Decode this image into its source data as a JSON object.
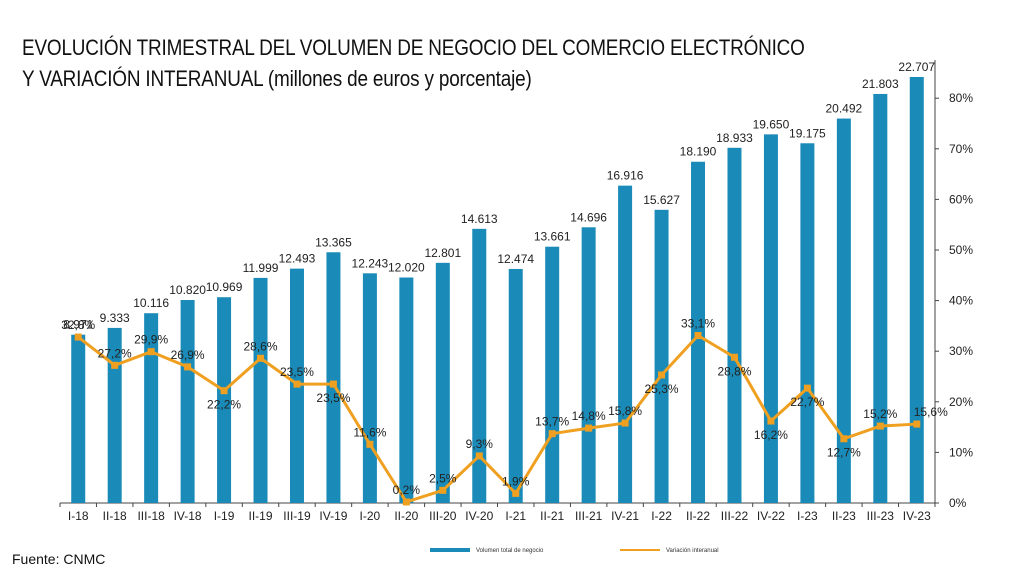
{
  "chart_data": {
    "type": "bar",
    "title_line1": "EVOLUCIÓN TRIMESTRAL DEL VOLUMEN DE NEGOCIO DEL COMERCIO ELECTRÓNICO",
    "title_line2": "Y VARIACIÓN INTERANUAL (millones de euros y porcentaje)",
    "source": "Fuente: CNMC",
    "categories": [
      "I-18",
      "II-18",
      "III-18",
      "IV-18",
      "I-19",
      "II-19",
      "III-19",
      "IV-19",
      "I-20",
      "II-20",
      "III-20",
      "IV-20",
      "I-21",
      "II-21",
      "III-21",
      "IV-21",
      "I-22",
      "II-22",
      "III-22",
      "IV-22",
      "I-23",
      "II-23",
      "III-23",
      "IV-23"
    ],
    "series": [
      {
        "name": "Volumen total de negocio",
        "kind": "bar",
        "color": "#1a8bb8",
        "values": [
          8971,
          9333,
          10116,
          10820,
          10969,
          11999,
          12493,
          13365,
          12243,
          12020,
          12801,
          14613,
          12474,
          13661,
          14696,
          16916,
          15627,
          18190,
          18933,
          19650,
          19175,
          20492,
          21803,
          22707
        ],
        "labels": [
          "8.971",
          "9.333",
          "10.116",
          "10.820",
          "10.969",
          "11.999",
          "12.493",
          "13.365",
          "12.243",
          "12.020",
          "12.801",
          "14.613",
          "12.474",
          "13.661",
          "14.696",
          "16.916",
          "15.627",
          "18.190",
          "18.933",
          "19.650",
          "19.175",
          "20.492",
          "21.803",
          "22.707"
        ]
      },
      {
        "name": "Variación interanual",
        "kind": "line",
        "axis": "right",
        "color": "#f0a020",
        "values": [
          32.8,
          27.2,
          29.9,
          26.9,
          22.2,
          28.6,
          23.5,
          23.5,
          11.6,
          0.2,
          2.5,
          9.3,
          1.9,
          13.7,
          14.8,
          15.8,
          25.3,
          33.1,
          28.8,
          16.2,
          22.7,
          12.7,
          15.2,
          15.6
        ],
        "labels": [
          "32,8%",
          "27,2%",
          "29,9%",
          "26,9%",
          "22,2%",
          "28,6%",
          "23,5%",
          "23,5%",
          "11,6%",
          "0,2%",
          "2,5%",
          "9,3%",
          "1,9%",
          "13,7%",
          "14,8%",
          "15,8%",
          "25,3%",
          "33,1%",
          "28,8%",
          "16,2%",
          "22,7%",
          "12,7%",
          "15,2%",
          "15,6%"
        ]
      }
    ],
    "y_right_ticks": [
      "0%",
      "10%",
      "20%",
      "30%",
      "40%",
      "50%",
      "60%",
      "70%",
      "80%"
    ],
    "y_right_range": [
      0,
      80
    ],
    "y_left_range": [
      0,
      22707
    ],
    "grid": false,
    "legend_position": "bottom"
  }
}
